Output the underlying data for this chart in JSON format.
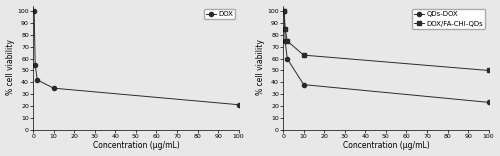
{
  "left_chart": {
    "dox_x": [
      0.5,
      1,
      2,
      10,
      100
    ],
    "dox_y": [
      100,
      55,
      42,
      35,
      21
    ],
    "legend_label": "DOX",
    "xlabel": "Concentration (μg/mL)",
    "ylabel": "% cell viability",
    "xlim": [
      0,
      100
    ],
    "ylim": [
      0,
      105
    ],
    "xticks": [
      0,
      10,
      20,
      30,
      40,
      50,
      60,
      70,
      80,
      90,
      100
    ],
    "yticks": [
      0,
      10,
      20,
      30,
      40,
      50,
      60,
      70,
      80,
      90,
      100
    ]
  },
  "right_chart": {
    "qds_dox_x": [
      0.5,
      1,
      2,
      10,
      100
    ],
    "qds_dox_y": [
      100,
      75,
      60,
      38,
      23
    ],
    "dox_fa_chi_qds_x": [
      0.5,
      1,
      2,
      10,
      100
    ],
    "dox_fa_chi_qds_y": [
      100,
      85,
      75,
      63,
      50
    ],
    "legend_label_1": "QDs-DOX",
    "legend_label_2": "DOX/FA-CHI-QDs",
    "xlabel": "Concentration (μg/mL)",
    "ylabel": "% cell viability",
    "xlim": [
      0,
      100
    ],
    "ylim": [
      0,
      105
    ],
    "xticks": [
      0,
      10,
      20,
      30,
      40,
      50,
      60,
      70,
      80,
      90,
      100
    ],
    "yticks": [
      0,
      10,
      20,
      30,
      40,
      50,
      60,
      70,
      80,
      90,
      100
    ]
  },
  "line_color": "#2a2a2a",
  "marker_size": 3,
  "fontsize_label": 5.5,
  "fontsize_tick": 4.5,
  "fontsize_legend": 5.0,
  "background_color": "#e8e8e8",
  "axes_background": "#e8e8e8"
}
